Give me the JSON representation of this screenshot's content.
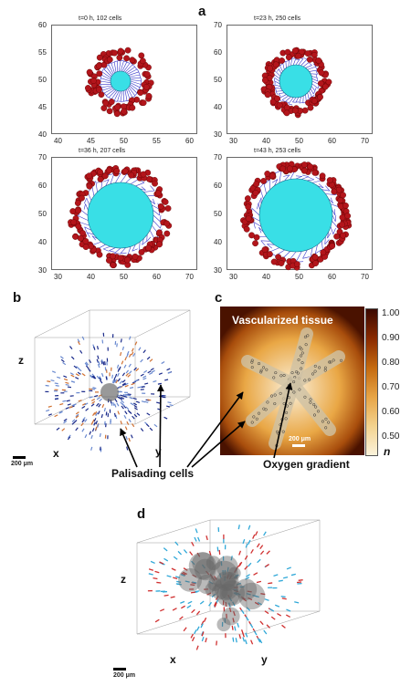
{
  "figure": {
    "panel_labels": {
      "a": "a",
      "b": "b",
      "c": "c",
      "d": "d"
    },
    "panel_a": {
      "subplots": [
        {
          "title": "t=0 h, 102 cells",
          "x_ticks": [
            "40",
            "45",
            "50",
            "55",
            "60"
          ],
          "y_ticks": [
            "60",
            "55",
            "50",
            "45",
            "40"
          ]
        },
        {
          "title": "t=23 h, 250 cells",
          "x_ticks": [
            "30",
            "40",
            "50",
            "60",
            "70"
          ],
          "y_ticks": [
            "70",
            "60",
            "50",
            "40",
            "30"
          ]
        },
        {
          "title": "t=36 h, 207 cells",
          "x_ticks": [
            "30",
            "40",
            "50",
            "60",
            "70"
          ],
          "y_ticks": [
            "70",
            "60",
            "50",
            "40",
            "30"
          ]
        },
        {
          "title": "t=43 h, 253 cells",
          "x_ticks": [
            "30",
            "40",
            "50",
            "60",
            "70"
          ],
          "y_ticks": [
            "70",
            "60",
            "50",
            "40",
            "30"
          ]
        }
      ]
    },
    "panel_b": {
      "axis_z": "z",
      "axis_x": "x",
      "axis_y": "y",
      "scalebar": "200 μm"
    },
    "panel_c": {
      "title": "Vascularized tissue",
      "scalebar": "200 μm",
      "caption": "Oxygen gradient",
      "colorbar_ticks": [
        "1.00",
        "0.90",
        "0.80",
        "0.70",
        "0.60",
        "0.50"
      ],
      "colorbar_symbol": "n"
    },
    "shared_label": "Palisading cells",
    "panel_d": {
      "axis_z": "z",
      "axis_x": "x",
      "axis_y": "y",
      "scalebar": "200 μm"
    },
    "colors": {
      "cell_red": "#b3151b",
      "core_cyan": "#39dfe6",
      "mesh_blue": "#3a3acb",
      "tissue_dark": "#4a1200",
      "tissue_light": "#f6dfb0"
    }
  }
}
